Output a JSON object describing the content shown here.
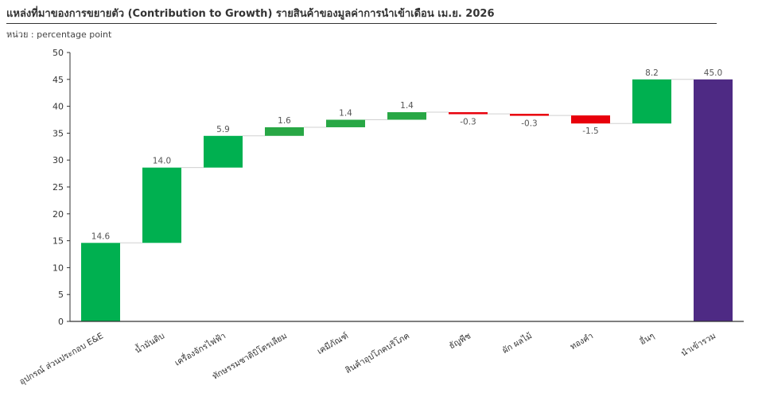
{
  "title": "แหล่งที่มาของการขยายตัว (Contribution to Growth) รายสินค้าของมูลค่าการนำเข้าเดือน เม.ย. 2026",
  "unit_label": "หน่วย : percentage point",
  "colors": {
    "increase": "#00B050",
    "increase_small": "#28A745",
    "decrease": "#E8000B",
    "total": "#4E2A84",
    "axis": "#333333",
    "connector": "#D0D0D0"
  },
  "chart_data": {
    "type": "waterfall",
    "categories": [
      "อุปกรณ์ ส่วนประกอบ E&E",
      "น้ำมันดิบ",
      "เครื่องจักรไฟฟ้า",
      "ทักษรรมชาติบิโตรเลียม",
      "เคมีภัณฑ์",
      "สินค้าอุปโภคบริโภค",
      "ธัญพืช",
      "ผัก ผลไม้",
      "ทองคำ",
      "อื่นๆ",
      "นำเข้ารวม"
    ],
    "values": [
      14.6,
      14.0,
      5.9,
      1.6,
      1.4,
      1.4,
      -0.3,
      -0.3,
      -1.5,
      8.2,
      45.0
    ],
    "labels": [
      "14.6",
      "14.0",
      "5.9",
      "1.6",
      "1.4",
      "1.4",
      "-0.3",
      "-0.3",
      "-1.5",
      "8.2",
      "45.0"
    ],
    "bar_kinds": [
      "increase",
      "increase",
      "increase",
      "increase_small",
      "increase_small",
      "increase_small",
      "decrease",
      "decrease",
      "decrease",
      "increase",
      "total"
    ],
    "ylim": [
      0,
      50
    ],
    "yticks": [
      0,
      5,
      10,
      15,
      20,
      25,
      30,
      35,
      40,
      45,
      50
    ],
    "xlabel": "",
    "ylabel": "",
    "grid": false,
    "legend": "none"
  }
}
